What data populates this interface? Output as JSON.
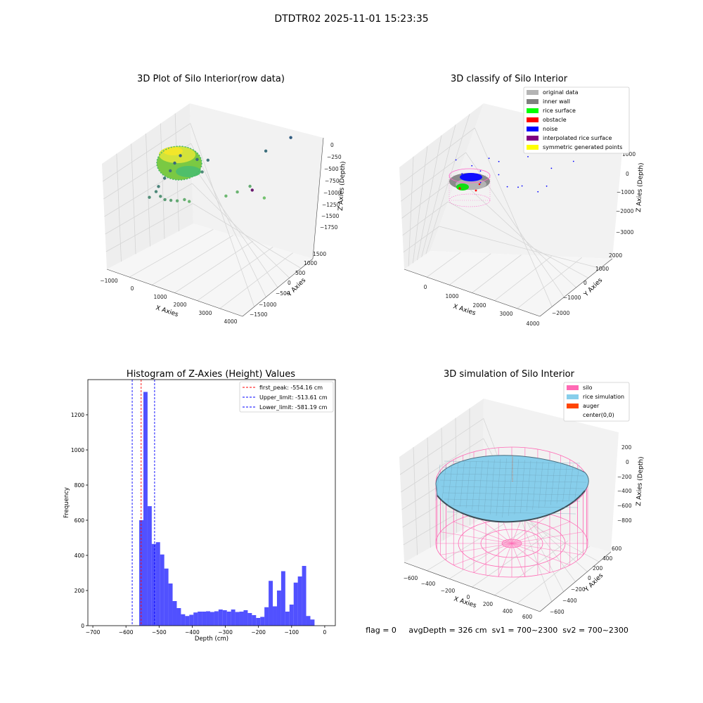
{
  "figure": {
    "title": "DTDTR02 2025-11-01 15:23:35",
    "status_text": "flag = 0     avgDepth = 326 cm  sv1 = 700~2300  sv2 = 700~2300"
  },
  "colors": {
    "pane_side": "#eeeeee",
    "pane_back": "#f2f2f2",
    "pane_floor": "#f6f6f6",
    "grid": "#d2d2d2",
    "hist_bar": "#3333ff",
    "peak_line": "#ff0000",
    "limit_line": "#0000ff",
    "original": "#b4b4b4",
    "inner_wall": "#808080",
    "rice_surface": "#00ff00",
    "obstacle": "#ff0000",
    "noise": "#0000ff",
    "interpolated": "#800080",
    "symmetric": "#ffff00",
    "silo": "#ff69b4",
    "rice_sim": "#87ceeb",
    "auger": "#ff4500",
    "center": "#ffffff"
  },
  "chart_data": [
    {
      "type": "scatter",
      "name": "raw",
      "title": "3D Plot of Silo Interior(row data)",
      "xlabel": "X Axies",
      "ylabel": "Y Axies",
      "zlabel": "Z Axies (Depth)",
      "x_ticks": [
        "−1000",
        "0",
        "1000",
        "2000",
        "3000",
        "4000"
      ],
      "y_ticks": [
        "1500",
        "1000",
        "500",
        "0",
        "−500",
        "−1000",
        "−1500"
      ],
      "z_ticks": [
        "0",
        "−250",
        "−500",
        "−750",
        "−1000",
        "−1250",
        "−1500",
        "−1750"
      ],
      "points": [
        {
          "x": 120,
          "y": 380,
          "z": -1120
        },
        {
          "x": 270,
          "y": 440,
          "z": -1200
        },
        {
          "x": 310,
          "y": 480,
          "z": -1280
        },
        {
          "x": 420,
          "y": 560,
          "z": -1400
        },
        {
          "x": 520,
          "y": 640,
          "z": -1500
        },
        {
          "x": 600,
          "y": 700,
          "z": -1620
        },
        {
          "x": 700,
          "y": 780,
          "z": -1720
        },
        {
          "x": 350,
          "y": 500,
          "z": -1050
        },
        {
          "x": 450,
          "y": 540,
          "z": -950
        },
        {
          "x": 560,
          "y": 620,
          "z": -870
        },
        {
          "x": 660,
          "y": 720,
          "z": -780
        },
        {
          "x": 780,
          "y": 830,
          "z": -720
        },
        {
          "x": 880,
          "y": 880,
          "z": -640
        },
        {
          "x": 1050,
          "y": 960,
          "z": -1500
        },
        {
          "x": 1300,
          "y": 1050,
          "z": -1420
        },
        {
          "x": 1150,
          "y": 1020,
          "z": -1180
        },
        {
          "x": 1800,
          "y": 1120,
          "z": -600
        },
        {
          "x": 2100,
          "y": 1180,
          "z": -650
        },
        {
          "x": 2450,
          "y": 1230,
          "z": -750
        },
        {
          "x": 2850,
          "y": 1280,
          "z": -470
        },
        {
          "x": 2900,
          "y": 1280,
          "z": -1500
        },
        {
          "x": 3600,
          "y": 1370,
          "z": -1750
        },
        {
          "x": 3900,
          "y": -150,
          "z": -1900
        }
      ]
    },
    {
      "type": "scatter",
      "name": "classify",
      "title": "3D classify of Silo Interior",
      "xlabel": "X Axies",
      "ylabel": "Y Axies",
      "zlabel": "Z Axies (Depth)",
      "x_ticks": [
        "0",
        "1000",
        "2000",
        "3000",
        "4000"
      ],
      "y_ticks": [
        "2000",
        "1000",
        "0",
        "−1000",
        "−2000"
      ],
      "z_ticks": [
        "1000",
        "0",
        "−1000",
        "−2000",
        "−3000"
      ],
      "legend": [
        "original data",
        "inner wall",
        "rice surface",
        "obstacle",
        "noise",
        "interpolated rice surface",
        "symmetric generated points"
      ],
      "noise_points": [
        {
          "x": 2100,
          "y": 1300,
          "z": -900
        },
        {
          "x": 2500,
          "y": 1400,
          "z": -700
        },
        {
          "x": 2800,
          "y": 1600,
          "z": -1800
        },
        {
          "x": 3300,
          "y": 1900,
          "z": -2200
        },
        {
          "x": 3900,
          "y": 2200,
          "z": -3000
        },
        {
          "x": 2400,
          "y": 900,
          "z": -2200
        },
        {
          "x": 900,
          "y": 800,
          "z": -1600
        },
        {
          "x": 1100,
          "y": 900,
          "z": -1400
        },
        {
          "x": 1300,
          "y": 1000,
          "z": -2000
        },
        {
          "x": 700,
          "y": 600,
          "z": -1200
        },
        {
          "x": 1600,
          "y": 900,
          "z": -1300
        },
        {
          "x": 1800,
          "y": 1000,
          "z": -800
        },
        {
          "x": 2200,
          "y": 700,
          "z": -800
        },
        {
          "x": 1500,
          "y": 1200,
          "z": -1900
        },
        {
          "x": 2600,
          "y": 1800,
          "z": -1000
        },
        {
          "x": 1000,
          "y": 1200,
          "z": -900
        },
        {
          "x": 500,
          "y": 700,
          "z": -1800
        }
      ]
    },
    {
      "type": "bar",
      "name": "histogram",
      "title": "Histogram of Z-Axies (Height) Values",
      "xlabel": "Depth (cm)",
      "ylabel": "Frequency",
      "xlim": [
        -715,
        32
      ],
      "ylim": [
        0,
        1400
      ],
      "x_ticks": [
        -700,
        -600,
        -500,
        -400,
        -300,
        -200,
        -100,
        0
      ],
      "x_tick_labels": [
        "−700",
        "−600",
        "−500",
        "−400",
        "−300",
        "−200",
        "−100",
        "0"
      ],
      "y_ticks": [
        0,
        200,
        400,
        600,
        800,
        1000,
        1200
      ],
      "bin_start": -560,
      "bin_width": 12.6,
      "values": [
        600,
        1330,
        680,
        465,
        475,
        405,
        325,
        240,
        140,
        100,
        65,
        55,
        62,
        75,
        80,
        80,
        82,
        78,
        82,
        92,
        88,
        80,
        92,
        78,
        80,
        88,
        72,
        60,
        44,
        50,
        105,
        255,
        110,
        200,
        310,
        80,
        120,
        245,
        280,
        340,
        55,
        35
      ],
      "lines": [
        {
          "label": "first_peak: -554.16 cm",
          "value": -554.16,
          "color": "#ff0000"
        },
        {
          "label": "Upper_limit: -513.61 cm",
          "value": -513.61,
          "color": "#0000ff"
        },
        {
          "label": "Lower_limit: -581.19 cm",
          "value": -581.19,
          "color": "#0000ff"
        }
      ]
    },
    {
      "type": "surface",
      "name": "simulation",
      "title": "3D simulation of Silo Interior",
      "xlabel": "X Axies",
      "ylabel": "Y Axies",
      "zlabel": "Z Axies (Depth)",
      "x_ticks": [
        "−600",
        "−400",
        "−200",
        "0",
        "200",
        "400",
        "600"
      ],
      "y_ticks": [
        "600",
        "400",
        "200",
        "0",
        "−200",
        "−400",
        "−600"
      ],
      "z_ticks": [
        "200",
        "0",
        "−200",
        "−400",
        "−600",
        "−800"
      ],
      "legend": [
        "silo",
        "rice simulation",
        "auger",
        "center(0,0)"
      ]
    }
  ]
}
